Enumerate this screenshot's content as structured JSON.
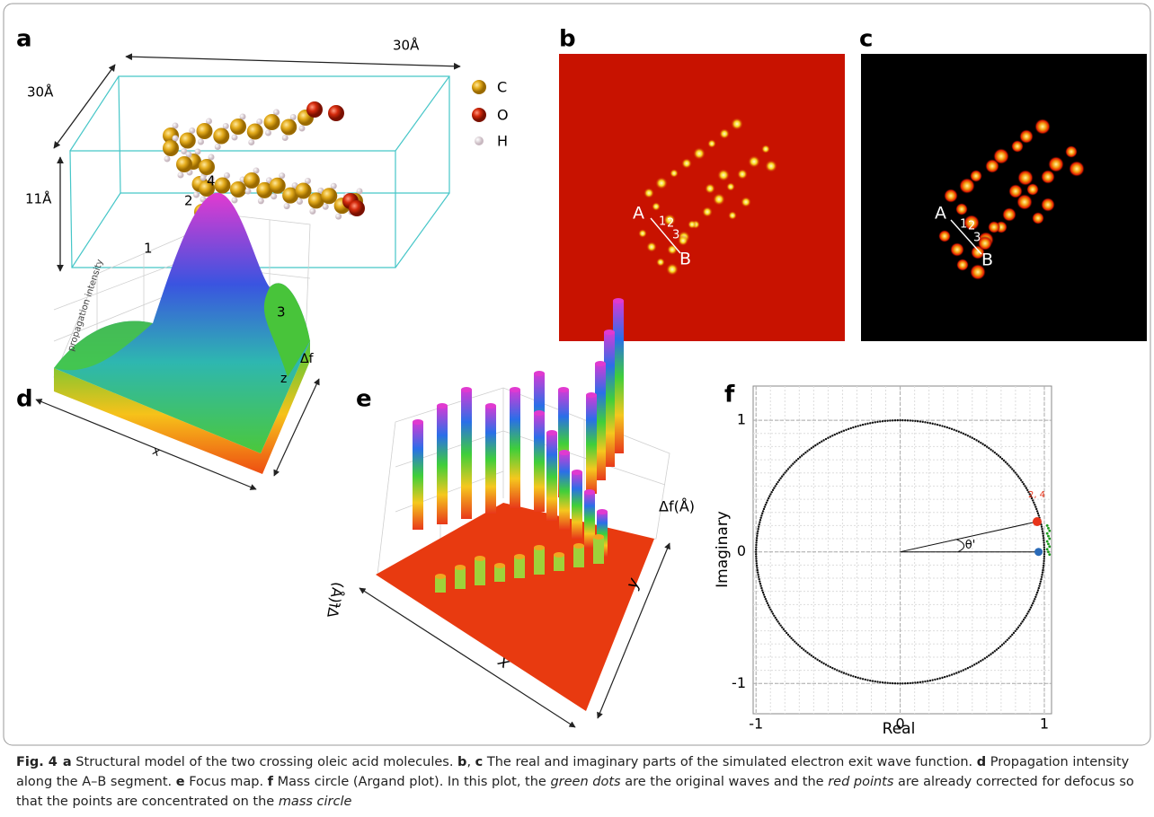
{
  "labels": [
    "a",
    "b",
    "c",
    "d",
    "e",
    "f"
  ],
  "panel_a": {
    "dims": [
      "30Å",
      "30Å",
      "11Å"
    ],
    "legend": [
      "C",
      "O",
      "H"
    ]
  },
  "panel_b": {
    "markers": [
      "A",
      "1",
      "2",
      "3",
      "B"
    ]
  },
  "panel_c": {
    "markers": [
      "A",
      "1",
      "2",
      "3",
      "B"
    ]
  },
  "panel_d": {
    "peaks": [
      "1",
      "2",
      "4",
      "3"
    ],
    "axis_labels": [
      "propagation intensity",
      "x",
      "Δf",
      "z"
    ]
  },
  "panel_e": {
    "axis_labels": [
      "Δf(Å)",
      "Δf(Å)",
      "x",
      "y"
    ]
  },
  "panel_f": {
    "xlabel": "Real",
    "ylabel": "Imaginary",
    "angle_label": "θ'",
    "point_label": "2, 4",
    "xlim": [
      -1.02,
      1.05
    ],
    "ylim": [
      -1.23,
      1.26
    ],
    "xticks": [
      -1,
      0,
      1
    ],
    "yticks": [
      -1,
      0,
      1
    ],
    "circle_radius": 1,
    "red_point": [
      0.95,
      0.23
    ],
    "blue_point": [
      0.96,
      0
    ]
  },
  "caption": [
    {
      "style": "bold",
      "text": "Fig. 4"
    },
    {
      "style": "bold",
      "text": "a"
    },
    {
      "style": "normal",
      "text": " Structural model of the two crossing oleic acid molecules. "
    },
    {
      "style": "bold",
      "text": "b"
    },
    {
      "style": "normal",
      "text": ", "
    },
    {
      "style": "bold",
      "text": "c"
    },
    {
      "style": "normal",
      "text": " The real and imaginary parts of the simulated electron exit wave function. "
    },
    {
      "style": "bold",
      "text": "d"
    },
    {
      "style": "normal",
      "text": " Propagation intensity along the A–B segment. "
    },
    {
      "style": "bold",
      "text": "e"
    },
    {
      "style": "normal",
      "text": " Focus map. "
    },
    {
      "style": "bold",
      "text": "f"
    },
    {
      "style": "normal",
      "text": " Mass circle (Argand plot). In this plot, the "
    },
    {
      "style": "italic",
      "text": "green dots"
    },
    {
      "style": "normal",
      "text": " are the original waves and the "
    },
    {
      "style": "italic",
      "text": "red points"
    },
    {
      "style": "normal",
      "text": " are already corrected for defocus so that the points are concentrated on the "
    },
    {
      "style": "italic",
      "text": "mass circle"
    }
  ]
}
